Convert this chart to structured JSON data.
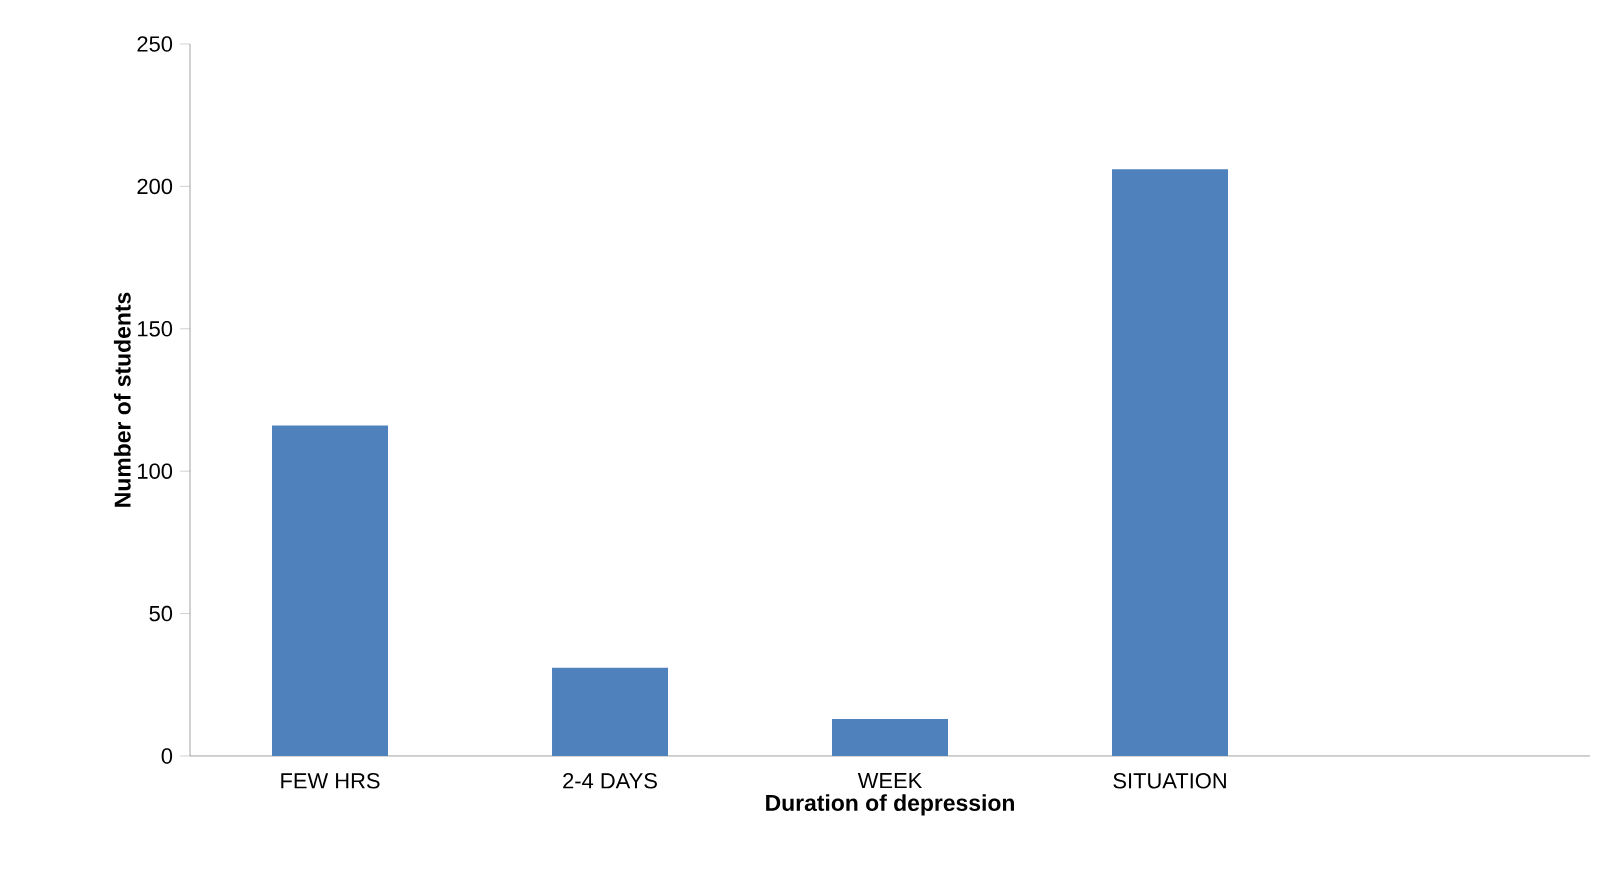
{
  "chart_data": {
    "type": "bar",
    "xlabel": "Duration of depression",
    "ylabel": "Number of students",
    "categories": [
      "FEW HRS",
      "2-4 DAYS",
      "WEEK",
      "SITUATION",
      null
    ],
    "values": [
      116,
      31,
      13,
      206,
      null
    ],
    "color": "#4f81bd",
    "ylim": [
      0,
      250
    ],
    "yticks": [
      0,
      50,
      100,
      150,
      200,
      250
    ],
    "grid": false
  }
}
